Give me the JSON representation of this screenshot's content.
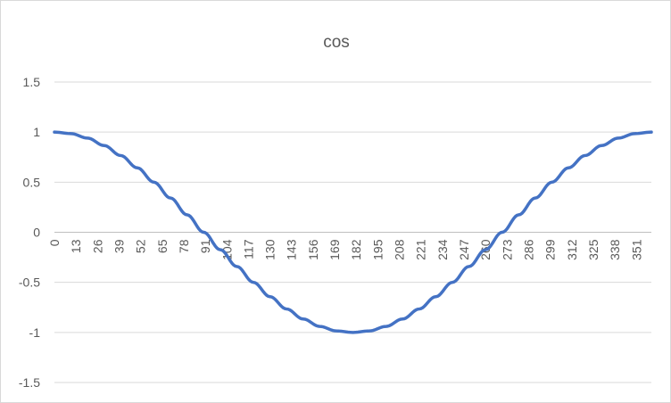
{
  "chart_data": {
    "type": "line",
    "title": "cos",
    "xlabel": "",
    "ylabel": "",
    "x_tick_labels": [
      "0",
      "13",
      "26",
      "39",
      "52",
      "65",
      "78",
      "91",
      "104",
      "117",
      "130",
      "143",
      "156",
      "169",
      "182",
      "195",
      "208",
      "221",
      "234",
      "247",
      "260",
      "273",
      "286",
      "299",
      "312",
      "325",
      "338",
      "351"
    ],
    "x_step": 1,
    "x_range": [
      0,
      360
    ],
    "ylim": [
      -1.5,
      1.5
    ],
    "y_ticks": [
      1.5,
      1,
      0.5,
      0,
      -0.5,
      -1,
      -1.5
    ],
    "y_tick_labels": [
      "1.5",
      "1",
      "0.5",
      "0",
      "-0.5",
      "-1",
      "-1.5"
    ],
    "grid": "horizontal",
    "legend": "none",
    "series": [
      {
        "function": "cos(x degrees)",
        "color": "#4472c4",
        "x": [
          0,
          10,
          20,
          30,
          40,
          50,
          60,
          70,
          80,
          90,
          100,
          110,
          120,
          130,
          140,
          150,
          160,
          170,
          180,
          190,
          200,
          210,
          220,
          230,
          240,
          250,
          260,
          270,
          280,
          290,
          300,
          310,
          320,
          330,
          340,
          350,
          360
        ],
        "values": [
          1,
          0.985,
          0.94,
          0.866,
          0.766,
          0.643,
          0.5,
          0.342,
          0.174,
          0,
          -0.174,
          -0.342,
          -0.5,
          -0.643,
          -0.766,
          -0.866,
          -0.94,
          -0.985,
          -1,
          -0.985,
          -0.94,
          -0.866,
          -0.766,
          -0.643,
          -0.5,
          -0.342,
          -0.174,
          0,
          0.174,
          0.342,
          0.5,
          0.643,
          0.766,
          0.866,
          0.94,
          0.985,
          1
        ]
      }
    ]
  }
}
